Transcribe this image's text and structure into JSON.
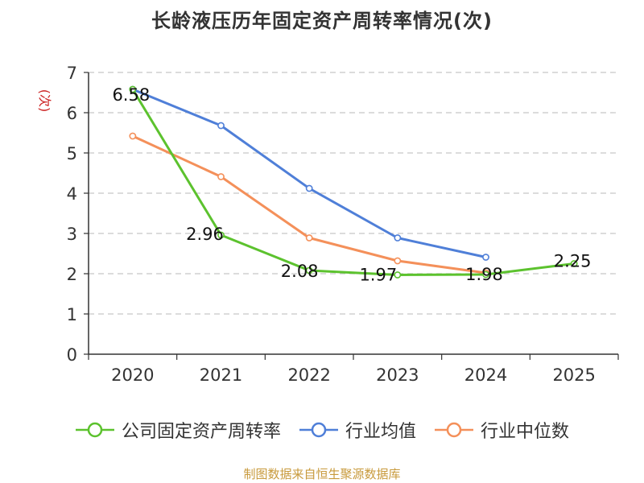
{
  "chart_data": {
    "type": "line",
    "title": "长龄液压历年固定资产周转率情况(次)",
    "xlabel": "",
    "ylabel": "(次)",
    "ylim": [
      0,
      7
    ],
    "yticks": [
      0,
      1,
      2,
      3,
      4,
      5,
      6,
      7
    ],
    "categories": [
      "2020",
      "2021",
      "2022",
      "2023",
      "2024",
      "2025"
    ],
    "grid": true,
    "legend_position": "bottom-center",
    "series": [
      {
        "name": "公司固定资产周转率",
        "color": "#5cc22e",
        "values": [
          6.58,
          2.96,
          2.08,
          1.97,
          1.98,
          2.25
        ],
        "labels": [
          "6.58",
          "2.96",
          "2.08",
          "1.97",
          "1.98",
          "2.25"
        ]
      },
      {
        "name": "行业均值",
        "color": "#4f7fd8",
        "values": [
          6.58,
          5.68,
          4.12,
          2.89,
          2.41,
          null
        ]
      },
      {
        "name": "行业中位数",
        "color": "#f4905a",
        "values": [
          5.42,
          4.41,
          2.89,
          2.32,
          2.02,
          null
        ]
      }
    ]
  },
  "footer": {
    "source": "制图数据来自恒生聚源数据库"
  }
}
